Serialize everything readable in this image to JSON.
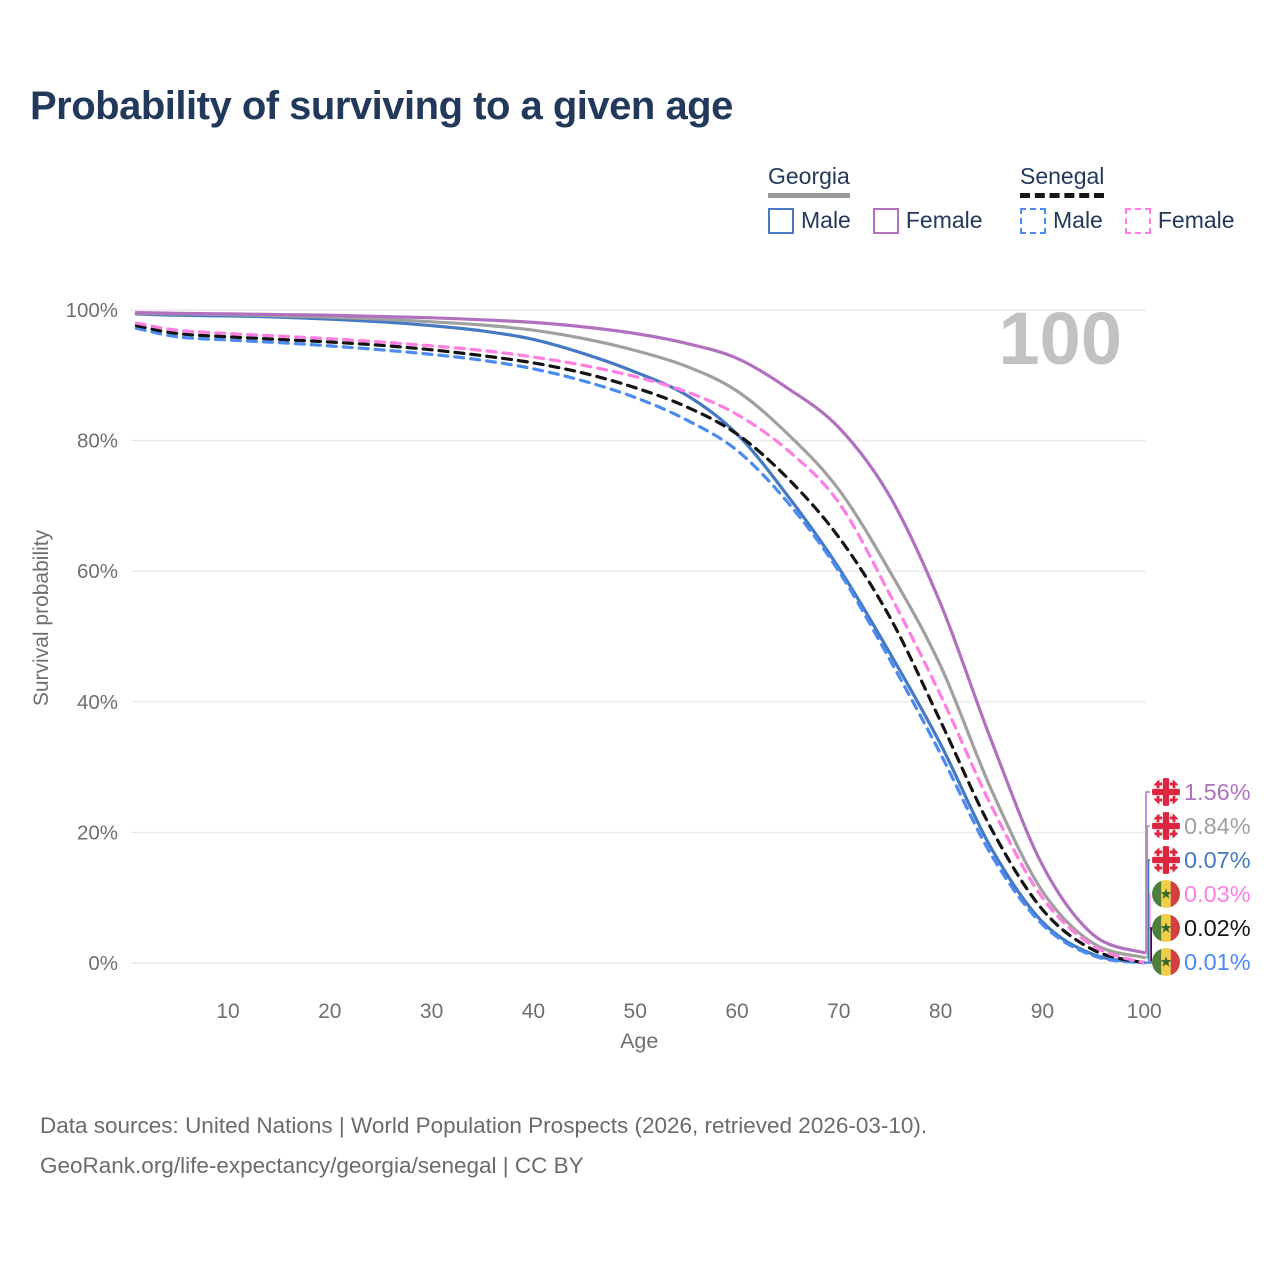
{
  "title": "Probability of surviving to a given age",
  "legend": {
    "groups": [
      {
        "label": "Georgia",
        "underline_color": "#9a9a9a",
        "underline_style": "solid",
        "items": [
          {
            "label": "Male",
            "color": "#4579c2",
            "style": "solid"
          },
          {
            "label": "Female",
            "color": "#b271bf",
            "style": "solid"
          }
        ]
      },
      {
        "label": "Senegal",
        "underline_color": "#161616",
        "underline_style": "dashed",
        "items": [
          {
            "label": "Male",
            "color": "#4b8bf2",
            "style": "dashed"
          },
          {
            "label": "Female",
            "color": "#ff7ee2",
            "style": "dashed"
          }
        ]
      }
    ]
  },
  "footer": {
    "line1": "Data sources: United Nations | World Population Prospects (2026, retrieved 2026-03-10).",
    "line2": "GeoRank.org/life-expectancy/georgia/senegal | CC BY"
  },
  "chart_data": {
    "type": "line",
    "title": "Probability of surviving to a given age",
    "xlabel": "Age",
    "ylabel": "Survival probability",
    "watermark": "100",
    "grid": "horizontal",
    "legend_position": "top-right",
    "xlim": [
      1,
      100
    ],
    "ylim": [
      0,
      100
    ],
    "x_ticks": [
      10,
      20,
      30,
      40,
      50,
      60,
      70,
      80,
      90,
      100
    ],
    "y_ticks": [
      0,
      20,
      40,
      60,
      80,
      100
    ],
    "y_tick_suffix": "%",
    "ages": [
      1,
      5,
      10,
      15,
      20,
      25,
      30,
      35,
      40,
      45,
      50,
      55,
      60,
      65,
      70,
      75,
      80,
      85,
      90,
      95,
      100
    ],
    "series": [
      {
        "name": "Georgia — Female",
        "country": "Georgia",
        "sex": "Female",
        "line": "solid",
        "color": "#b271bf",
        "flag": "georgia",
        "end_label": "1.56%",
        "values": [
          99.6,
          99.5,
          99.4,
          99.3,
          99.2,
          99.0,
          98.8,
          98.5,
          98.1,
          97.4,
          96.4,
          94.9,
          92.6,
          88.0,
          82.0,
          71.5,
          55.0,
          34.0,
          15.0,
          4.3,
          1.56
        ]
      },
      {
        "name": "Georgia — Both sexes",
        "country": "Georgia",
        "sex": "Both",
        "line": "solid",
        "color": "#a0a0a0",
        "flag": "georgia",
        "end_label": "0.84%",
        "values": [
          99.5,
          99.4,
          99.3,
          99.1,
          98.9,
          98.6,
          98.2,
          97.7,
          96.9,
          95.6,
          93.8,
          91.4,
          87.6,
          81.0,
          72.5,
          60.0,
          45.5,
          26.5,
          11.0,
          3.0,
          0.84
        ]
      },
      {
        "name": "Georgia — Male",
        "country": "Georgia",
        "sex": "Male",
        "line": "solid",
        "color": "#4579c2",
        "flag": "georgia",
        "end_label": "0.07%",
        "values": [
          99.4,
          99.2,
          99.1,
          98.9,
          98.6,
          98.2,
          97.6,
          96.8,
          95.5,
          93.3,
          90.5,
          87.0,
          81.0,
          71.5,
          60.5,
          47.5,
          33.5,
          17.5,
          6.3,
          1.3,
          0.07
        ]
      },
      {
        "name": "Senegal — Female",
        "country": "Senegal",
        "sex": "Female",
        "line": "dashed",
        "color": "#ff7ee2",
        "flag": "senegal",
        "end_label": "0.03%",
        "values": [
          98.0,
          96.9,
          96.4,
          96.0,
          95.6,
          95.1,
          94.5,
          93.8,
          92.8,
          91.5,
          89.8,
          87.5,
          84.0,
          78.5,
          70.5,
          56.5,
          41.0,
          24.0,
          10.0,
          2.6,
          0.03
        ]
      },
      {
        "name": "Senegal — Both sexes",
        "country": "Senegal",
        "sex": "Both",
        "line": "dashed",
        "color": "#141414",
        "flag": "senegal",
        "end_label": "0.02%",
        "values": [
          97.6,
          96.4,
          95.9,
          95.5,
          95.1,
          94.6,
          93.9,
          93.0,
          91.9,
          90.3,
          88.1,
          85.2,
          81.0,
          74.2,
          65.2,
          53.0,
          37.0,
          20.5,
          8.2,
          2.0,
          0.02
        ]
      },
      {
        "name": "Senegal — Male",
        "country": "Senegal",
        "sex": "Male",
        "line": "dashed",
        "color": "#4b8bf2",
        "flag": "senegal",
        "end_label": "0.01%",
        "values": [
          97.2,
          95.9,
          95.4,
          95.0,
          94.5,
          93.9,
          93.2,
          92.3,
          91.0,
          89.1,
          86.6,
          83.2,
          78.5,
          70.5,
          60.0,
          46.5,
          32.0,
          16.5,
          5.9,
          1.1,
          0.01
        ]
      }
    ],
    "flags": {
      "georgia": {
        "bg": "#f1f1f1",
        "cross": "#dc2540"
      },
      "senegal": {
        "green": "#4e7d3c",
        "yellow": "#f2cf49",
        "red": "#d2413f",
        "star": "#35662c"
      }
    },
    "colors": {
      "title": "#23395b",
      "axis_text": "#6f6f6f",
      "gridline": "#e9e9e9",
      "watermark": "#c2c2c2"
    }
  }
}
